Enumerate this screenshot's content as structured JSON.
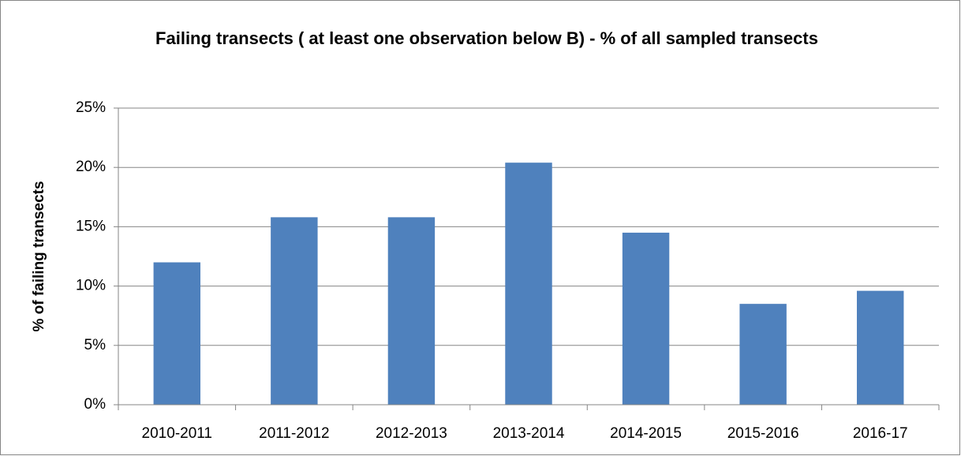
{
  "chart_data": {
    "type": "bar",
    "title": "Failing transects ( at least one observation below B) - % of all sampled transects",
    "y_label": "% of failing transects",
    "categories": [
      "2010-2011",
      "2011-2012",
      "2012-2013",
      "2013-2014",
      "2014-2015",
      "2015-2016",
      "2016-17"
    ],
    "values": [
      12.0,
      15.8,
      15.8,
      20.4,
      14.5,
      8.5,
      9.6
    ],
    "color": "#4f81bd",
    "ylim": [
      0,
      25
    ],
    "yticks": [
      {
        "value": 0,
        "label": "0%"
      },
      {
        "value": 5,
        "label": "5%"
      },
      {
        "value": 10,
        "label": "10%"
      },
      {
        "value": 15,
        "label": "15%"
      },
      {
        "value": 20,
        "label": "20%"
      },
      {
        "value": 25,
        "label": "25%"
      }
    ],
    "grid": true
  }
}
